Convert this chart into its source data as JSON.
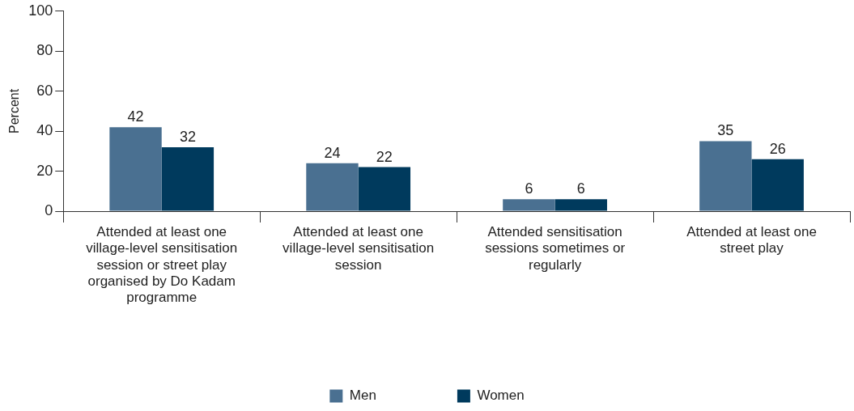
{
  "chart_data": {
    "type": "bar",
    "ylabel": "Percent",
    "categories": [
      "Attended at least one village-level sensitisation session or street play organised by Do Kadam programme",
      "Attended at least one village-level sensitisation session",
      "Attended sensitisation sessions sometimes or regularly",
      "Attended at least one street play"
    ],
    "series": [
      {
        "name": "Men",
        "color": "#4a7091",
        "values": [
          42,
          24,
          6,
          35
        ]
      },
      {
        "name": "Women",
        "color": "#003a5d",
        "values": [
          32,
          22,
          6,
          26
        ]
      }
    ],
    "ylim": [
      0,
      100
    ],
    "yticks": [
      0,
      20,
      40,
      60,
      80,
      100
    ],
    "grid": false,
    "legend": "bottom",
    "data_labels": true
  }
}
